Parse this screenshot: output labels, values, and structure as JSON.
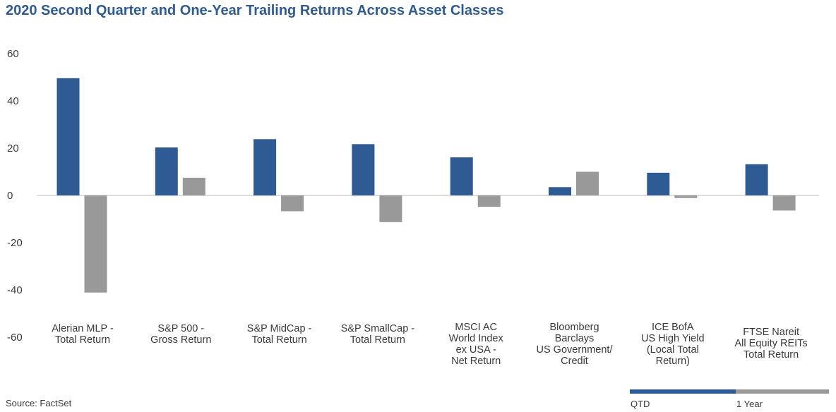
{
  "colors": {
    "qtd": "#2e5b94",
    "one_year": "#999999",
    "title": "#2e5b94",
    "axis": "#bbbbbb"
  },
  "chart_data": {
    "type": "bar",
    "title": "2020 Second Quarter and One-Year Trailing Returns Across Asset Classes",
    "xlabel": "",
    "ylabel": "",
    "ylim": [
      -60,
      60
    ],
    "yticks": [
      "60",
      "40",
      "20",
      "0",
      "-20",
      "-40",
      "-60"
    ],
    "grid": false,
    "legend_position": "bottom-right",
    "categories": [
      [
        "Alerian MLP -",
        "Total Return"
      ],
      [
        "S&P 500 -",
        "Gross Return"
      ],
      [
        "S&P MidCap -",
        "Total Return"
      ],
      [
        "S&P SmallCap -",
        "Total Return"
      ],
      [
        "MSCI AC",
        "World Index",
        "ex USA -",
        "Net Return"
      ],
      [
        "Bloomberg",
        "Barclays",
        "US Government/",
        "Credit"
      ],
      [
        "ICE BofA",
        "US High Yield",
        "(Local Total",
        "Return)"
      ],
      [
        "FTSE Nareit",
        "All Equity REITs",
        "Total Return"
      ]
    ],
    "series": [
      {
        "name": "QTD",
        "values": [
          49.6,
          20.3,
          23.8,
          21.7,
          16.1,
          3.5,
          9.6,
          13.2
        ]
      },
      {
        "name": "1 Year",
        "values": [
          -41.1,
          7.5,
          -6.7,
          -11.3,
          -4.8,
          10.0,
          -1.1,
          -6.4
        ]
      }
    ]
  },
  "source": "Source: FactSet"
}
